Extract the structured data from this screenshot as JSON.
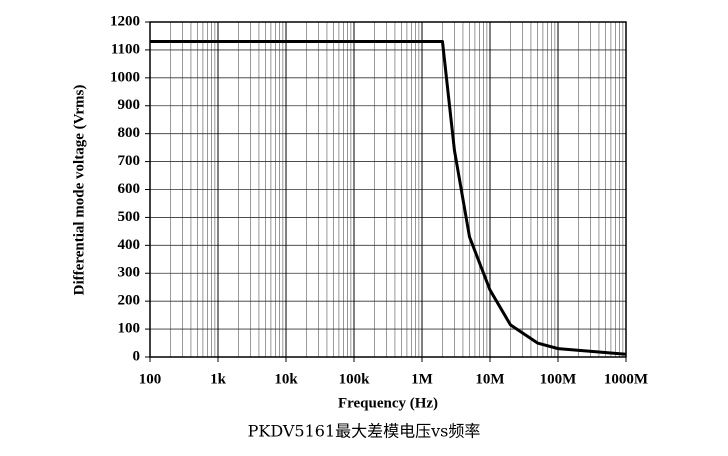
{
  "chart_data": {
    "type": "line",
    "title": "PKDV5161最大差模电压vs频率",
    "x_label": "Frequency (Hz)",
    "y_label": "Differential mode voltage (Vrms)",
    "x": [
      100,
      2000000,
      3000000,
      5000000,
      10000000,
      20000000,
      50000000,
      100000000,
      1000000000
    ],
    "series": [
      {
        "color": "#000000",
        "values": [
          1130,
          1130,
          740,
          430,
          240,
          115,
          50,
          30,
          10
        ]
      }
    ],
    "xlim": [
      100,
      1000000000
    ],
    "xticks": [
      100,
      {
        "value": 1000,
        "label": "1k"
      },
      {
        "value": 10000,
        "label": "10k"
      },
      {
        "value": 100000,
        "label": "100k"
      },
      {
        "value": 1000000,
        "label": "1M"
      },
      {
        "value": 10000000,
        "label": "10M"
      },
      {
        "value": 100000000,
        "label": "100M"
      },
      {
        "value": 1000000000,
        "label": "1000M"
      }
    ],
    "x_log": true,
    "ylim": [
      0,
      1200
    ],
    "yticks": [
      0,
      100,
      200,
      300,
      400,
      500,
      600,
      700,
      800,
      900,
      1000,
      1100,
      1200
    ],
    "grid": true
  }
}
